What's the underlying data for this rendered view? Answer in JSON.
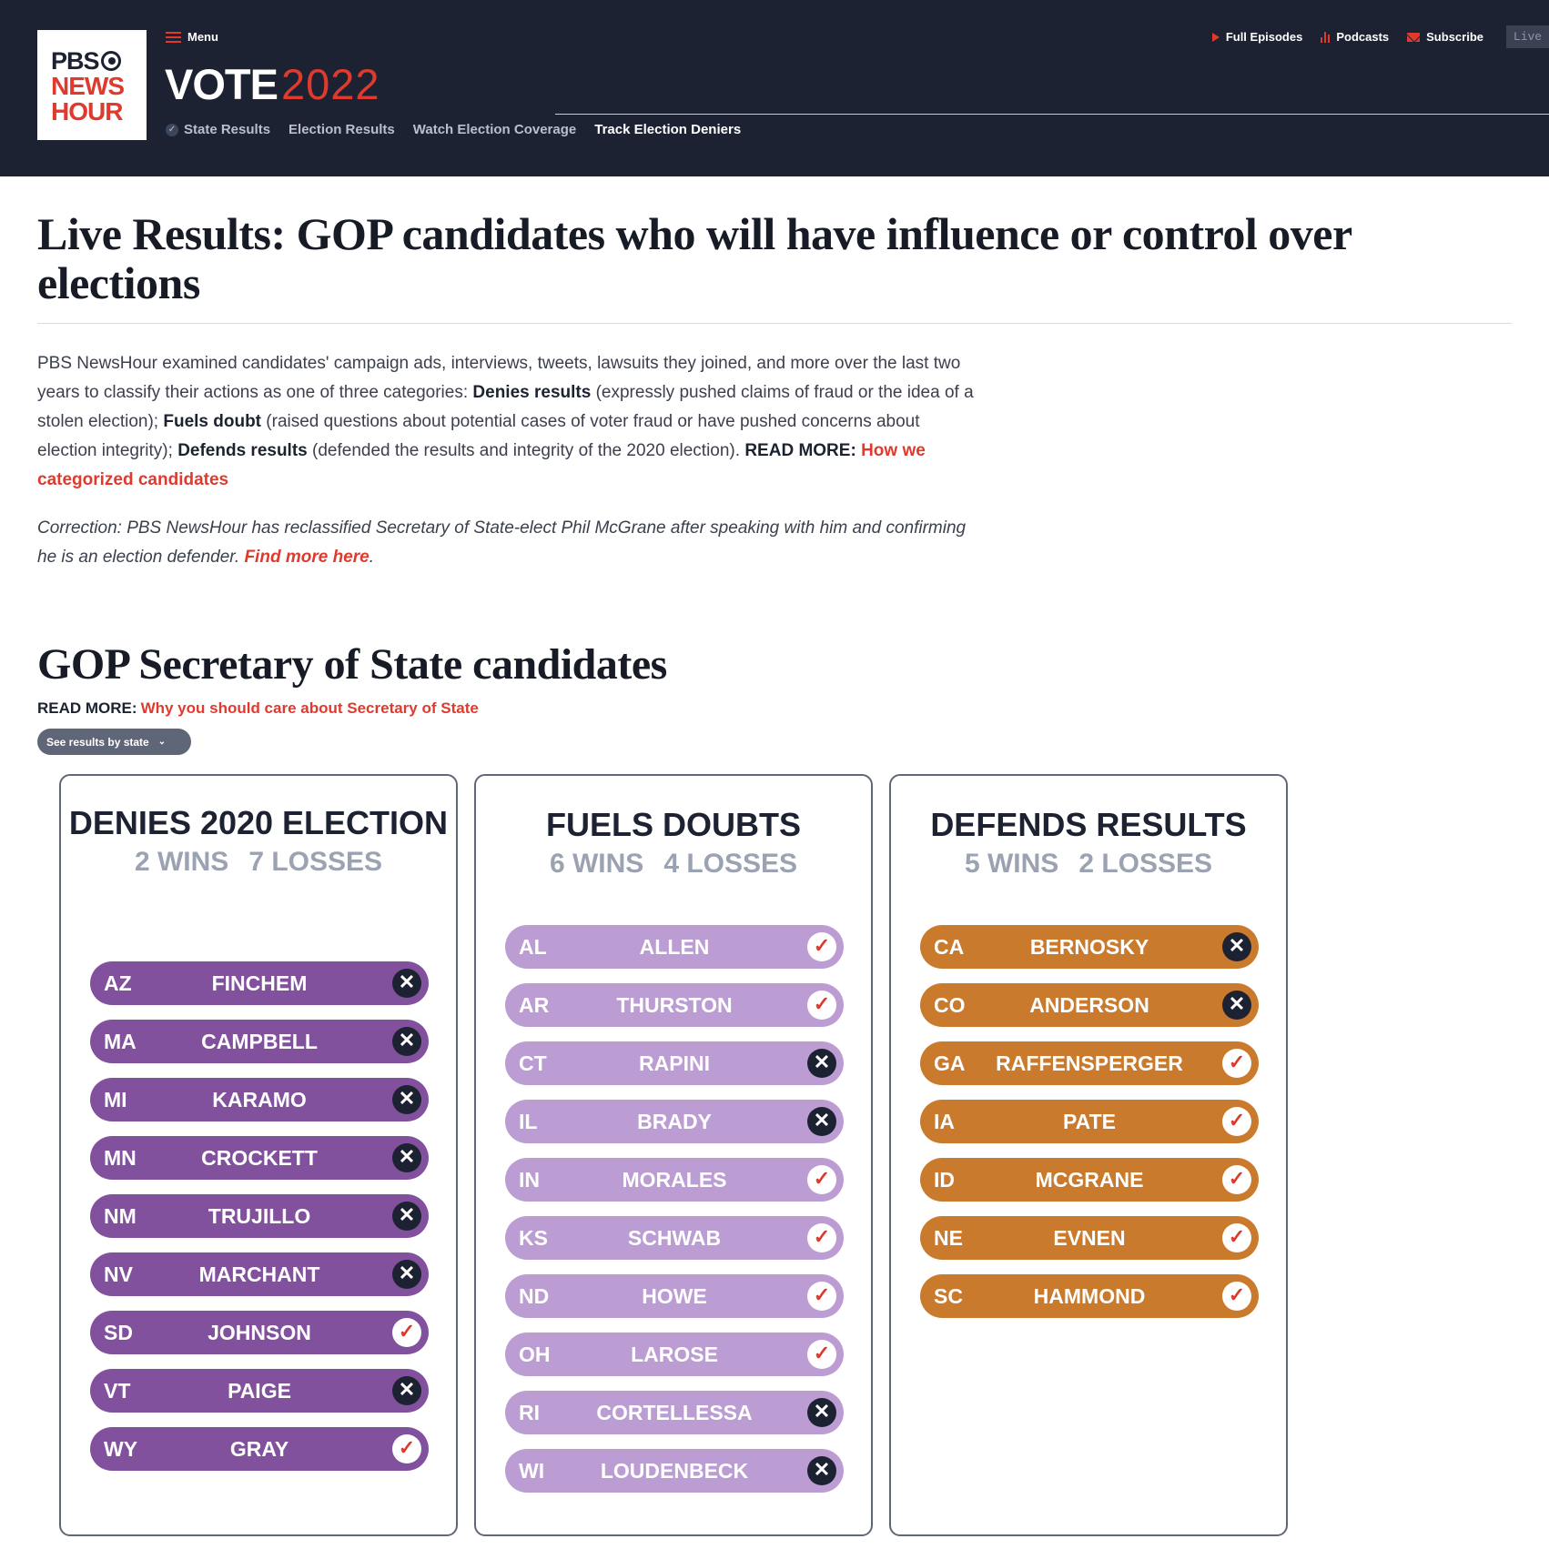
{
  "header": {
    "logo": {
      "line1": "PBS",
      "line2": "NEWS",
      "line3": "HOUR"
    },
    "menu_label": "Menu",
    "vote_label": "VOTE",
    "vote_year": "2022",
    "subnav": [
      "State Results",
      "Election Results",
      "Watch Election Coverage",
      "Track Election Deniers"
    ],
    "top_links": [
      "Full Episodes",
      "Podcasts",
      "Subscribe"
    ],
    "live_label": "Live"
  },
  "article": {
    "title": "Live Results: GOP candidates who will have influence or control over elections",
    "intro": {
      "p1": "PBS NewsHour examined candidates' campaign ads, interviews, tweets, lawsuits they joined, and more over the last two years to classify their actions as one of three categories: ",
      "b1": "Denies results",
      "p2": " (expressly pushed claims of fraud or the idea of a stolen election); ",
      "b2": "Fuels doubt",
      "p3": " (raised questions about potential cases of voter fraud or have pushed concerns about election integrity); ",
      "b3": "Defends results",
      "p4": " (defended the results and integrity of the 2020 election). ",
      "readmore": "READ MORE:",
      "link": "How we categorized candidates"
    },
    "correction": {
      "text": "Correction: PBS NewsHour has reclassified Secretary of State-elect Phil McGrane after speaking with him and confirming he is an election defender. ",
      "link": "Find more here",
      "end": "."
    },
    "section_title": "GOP Secretary of State candidates",
    "section_readmore": "READ MORE:",
    "section_link": "Why you should care about Secretary of State",
    "state_button": "See results by state"
  },
  "columns": {
    "deny": {
      "title": "DENIES 2020 ELECTION",
      "wins": "2 WINS",
      "losses": "7 LOSSES",
      "candidates": [
        {
          "state": "AZ",
          "name": "FINCHEM",
          "result": "lost"
        },
        {
          "state": "MA",
          "name": "CAMPBELL",
          "result": "lost"
        },
        {
          "state": "MI",
          "name": "KARAMO",
          "result": "lost"
        },
        {
          "state": "MN",
          "name": "CROCKETT",
          "result": "lost"
        },
        {
          "state": "NM",
          "name": "TRUJILLO",
          "result": "lost"
        },
        {
          "state": "NV",
          "name": "MARCHANT",
          "result": "lost"
        },
        {
          "state": "SD",
          "name": "JOHNSON",
          "result": "won"
        },
        {
          "state": "VT",
          "name": "PAIGE",
          "result": "lost"
        },
        {
          "state": "WY",
          "name": "GRAY",
          "result": "won"
        }
      ]
    },
    "fuel": {
      "title": "FUELS DOUBTS",
      "wins": "6 WINS",
      "losses": "4 LOSSES",
      "candidates": [
        {
          "state": "AL",
          "name": "ALLEN",
          "result": "won"
        },
        {
          "state": "AR",
          "name": "THURSTON",
          "result": "won"
        },
        {
          "state": "CT",
          "name": "RAPINI",
          "result": "lost"
        },
        {
          "state": "IL",
          "name": "BRADY",
          "result": "lost"
        },
        {
          "state": "IN",
          "name": "MORALES",
          "result": "won"
        },
        {
          "state": "KS",
          "name": "SCHWAB",
          "result": "won"
        },
        {
          "state": "ND",
          "name": "HOWE",
          "result": "won"
        },
        {
          "state": "OH",
          "name": "LAROSE",
          "result": "won"
        },
        {
          "state": "RI",
          "name": "CORTELLESSA",
          "result": "lost"
        },
        {
          "state": "WI",
          "name": "LOUDENBECK",
          "result": "lost"
        }
      ]
    },
    "defend": {
      "title": "DEFENDS RESULTS",
      "wins": "5 WINS",
      "losses": "2 LOSSES",
      "candidates": [
        {
          "state": "CA",
          "name": "BERNOSKY",
          "result": "lost"
        },
        {
          "state": "CO",
          "name": "ANDERSON",
          "result": "lost"
        },
        {
          "state": "GA",
          "name": "RAFFENSPERGER",
          "result": "won"
        },
        {
          "state": "IA",
          "name": "PATE",
          "result": "won"
        },
        {
          "state": "ID",
          "name": "MCGRANE",
          "result": "won"
        },
        {
          "state": "NE",
          "name": "EVNEN",
          "result": "won"
        },
        {
          "state": "SC",
          "name": "HAMMOND",
          "result": "won"
        }
      ]
    }
  },
  "colors": {
    "deny": "#82519d",
    "fuel": "#bb9dd3",
    "defend": "#c97a2c",
    "accent": "#e03a2f",
    "header_bg": "#1d2232"
  }
}
